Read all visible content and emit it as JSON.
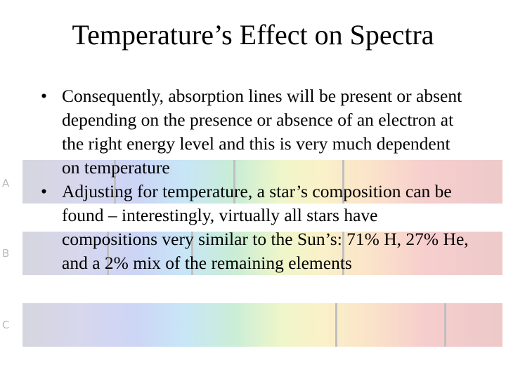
{
  "title": "Temperature’s Effect on Spectra",
  "bullets": [
    "Consequently, absorption lines will be present or absent depending on the presence or absence of an electron at the right energy level and this is very much dependent on temperature",
    "Adjusting for temperature, a star’s composition can be found – interestingly, virtually all stars have compositions very similar to the Sun’s: 71% H, 27% He, and a 2% mix of the remaining elements"
  ],
  "spectra": [
    {
      "label": "A"
    },
    {
      "label": "B"
    },
    {
      "label": "C"
    }
  ]
}
